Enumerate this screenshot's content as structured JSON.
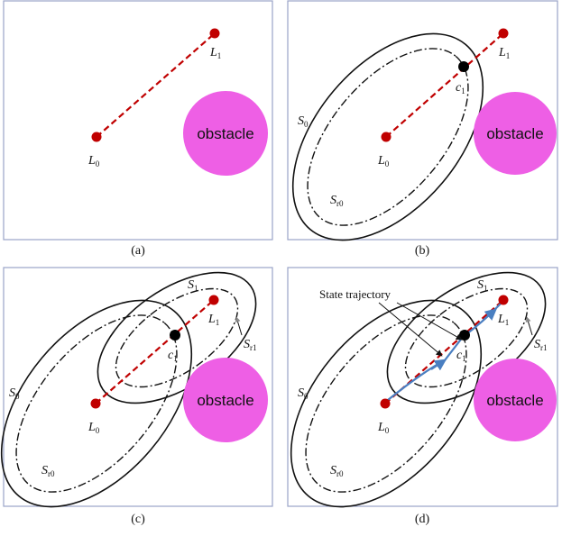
{
  "labels": {
    "obstacle": "obstacle",
    "L": "L",
    "S": "S",
    "c": "c",
    "sub_0": "0",
    "sub_1": "1",
    "sub_r0": "r0",
    "sub_r1": "r1",
    "state_trajectory": "State trajectory"
  },
  "captions": {
    "a": "(a)",
    "b": "(b)",
    "c": "(c)",
    "d": "(d)"
  },
  "colors": {
    "obstacle": "#ee5fe5",
    "point": "#c00000",
    "trajectory": "#4a7fc1",
    "frame": "#9aa3c7"
  }
}
